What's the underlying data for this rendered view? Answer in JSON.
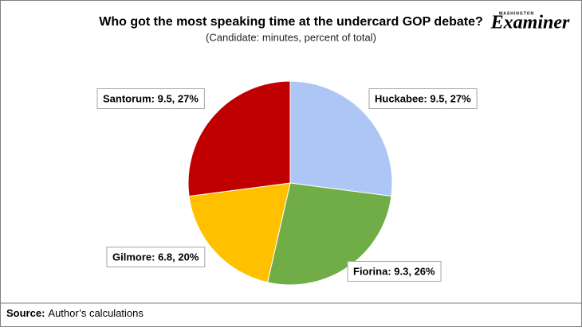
{
  "chart_data": {
    "type": "pie",
    "title": "Who got the most speaking time at the undercard GOP debate?",
    "subtitle": "(Candidate: minutes, percent of total)",
    "values": [
      9.5,
      9.3,
      6.8,
      9.5
    ],
    "value_labels": [
      "Huckabee: 9.5, 27%",
      "Fiorina: 9.3, 26%",
      "Gilmore: 6.8, 20%",
      "Santorum: 9.5, 27%"
    ],
    "colors": [
      "#adc6f5",
      "#70ad47",
      "#ffc000",
      "#c00000"
    ]
  },
  "source_label": "Source:",
  "source": "Author’s calculations",
  "logo": {
    "top": "WASHINGTON",
    "name": "Examiner"
  }
}
